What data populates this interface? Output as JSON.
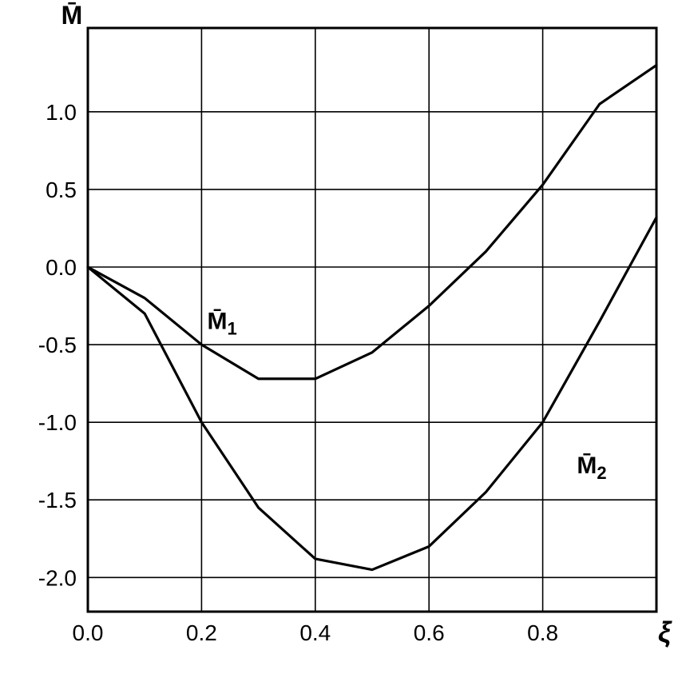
{
  "chart_data": {
    "type": "line",
    "title": "",
    "xlabel": "ξ",
    "ylabel": "M̄",
    "xlim": [
      0.0,
      1.0
    ],
    "ylim": [
      -2.22,
      1.54
    ],
    "grid": true,
    "legend_position": "none",
    "colors": {
      "stroke": "#000000",
      "background": "#ffffff"
    },
    "x_ticks": [
      0.0,
      0.2,
      0.4,
      0.6,
      0.8
    ],
    "x_tick_labels": [
      "0.0",
      "0.2",
      "0.4",
      "0.6",
      "0.8"
    ],
    "y_ticks": [
      1.0,
      0.5,
      0.0,
      -0.5,
      -1.0,
      -1.5,
      -2.0
    ],
    "y_tick_labels": [
      "1.0",
      "0.5",
      "0.0",
      "-0.5",
      "-1.0",
      "-1.5",
      "-2.0"
    ],
    "x": [
      0.0,
      0.1,
      0.2,
      0.3,
      0.4,
      0.5,
      0.6,
      0.7,
      0.8,
      0.9,
      1.0
    ],
    "series": [
      {
        "name": "M̄₁",
        "values": [
          0.0,
          -0.2,
          -0.5,
          -0.72,
          -0.72,
          -0.55,
          -0.25,
          0.1,
          0.53,
          1.05,
          1.3
        ]
      },
      {
        "name": "M̄₂",
        "values": [
          0.0,
          -0.3,
          -1.0,
          -1.55,
          -1.88,
          -1.95,
          -1.8,
          -1.45,
          -1.0,
          -0.35,
          0.32
        ]
      }
    ],
    "annotations": [
      {
        "base": "M̄",
        "sub": "1",
        "x": 0.21,
        "y": -0.4
      },
      {
        "base": "M̄",
        "sub": "2",
        "x": 0.86,
        "y": -1.33
      }
    ]
  }
}
